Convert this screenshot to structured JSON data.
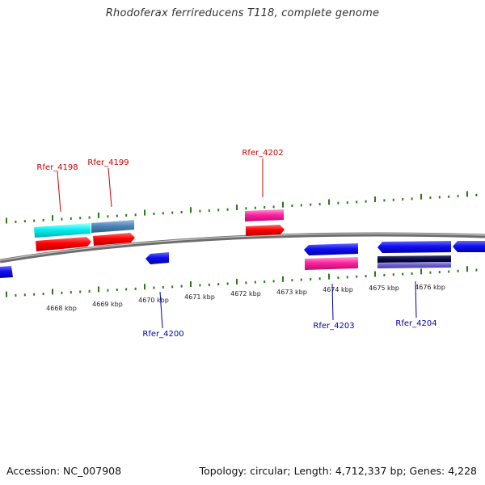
{
  "title": "Rhodoferax ferrireducens T118, complete genome",
  "accession": "Accession: NC_007908",
  "summary": "Topology: circular; Length: 4,712,337 bp; Genes: 4,228",
  "colors": {
    "forward_label": "#cc0000",
    "reverse_label": "#0000aa",
    "tick": "#2a7a1a",
    "backbone": "#888888"
  },
  "scale_labels": [
    "4668 kbp",
    "4669 kbp",
    "4670 kbp",
    "4671 kbp",
    "4672 kbp",
    "4673 kbp",
    "4674 kbp",
    "4675 kbp",
    "4676 kbp"
  ],
  "gene_labels": [
    {
      "name": "Rfer_4198",
      "strand": "forward"
    },
    {
      "name": "Rfer_4199",
      "strand": "forward"
    },
    {
      "name": "Rfer_4202",
      "strand": "forward"
    },
    {
      "name": "Rfer_4200",
      "strand": "reverse"
    },
    {
      "name": "Rfer_4203",
      "strand": "reverse"
    },
    {
      "name": "Rfer_4204",
      "strand": "reverse"
    }
  ]
}
